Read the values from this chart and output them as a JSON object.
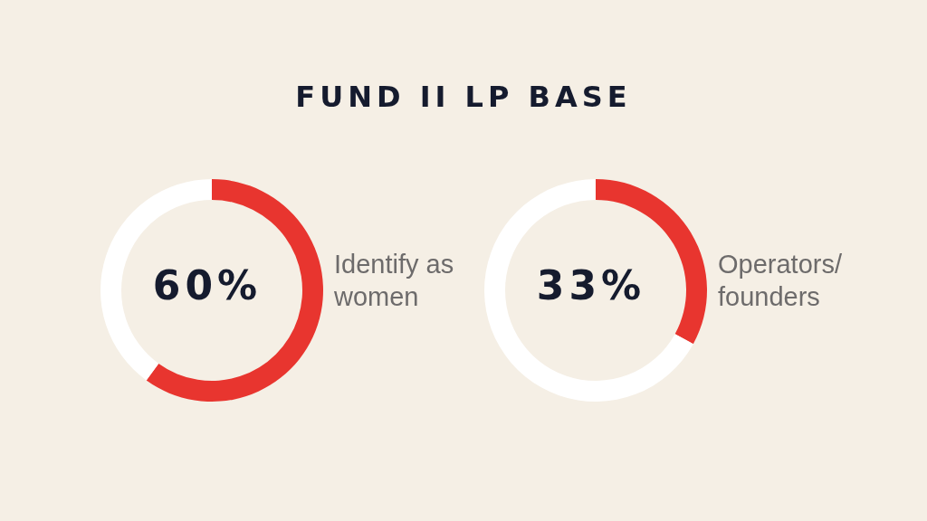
{
  "chart_data": [
    {
      "type": "donut",
      "title": "FUND II LP BASE",
      "categories": [
        "Identify as women",
        null
      ],
      "values": [
        60,
        40
      ],
      "colors": [
        "#e8352f",
        "#ffffff"
      ],
      "annotations": [
        "60%"
      ]
    },
    {
      "type": "donut",
      "categories": [
        "Operators/ founders",
        null
      ],
      "values": [
        33,
        67
      ],
      "colors": [
        "#e8352f",
        "#ffffff"
      ],
      "annotations": [
        "33%"
      ]
    }
  ]
}
